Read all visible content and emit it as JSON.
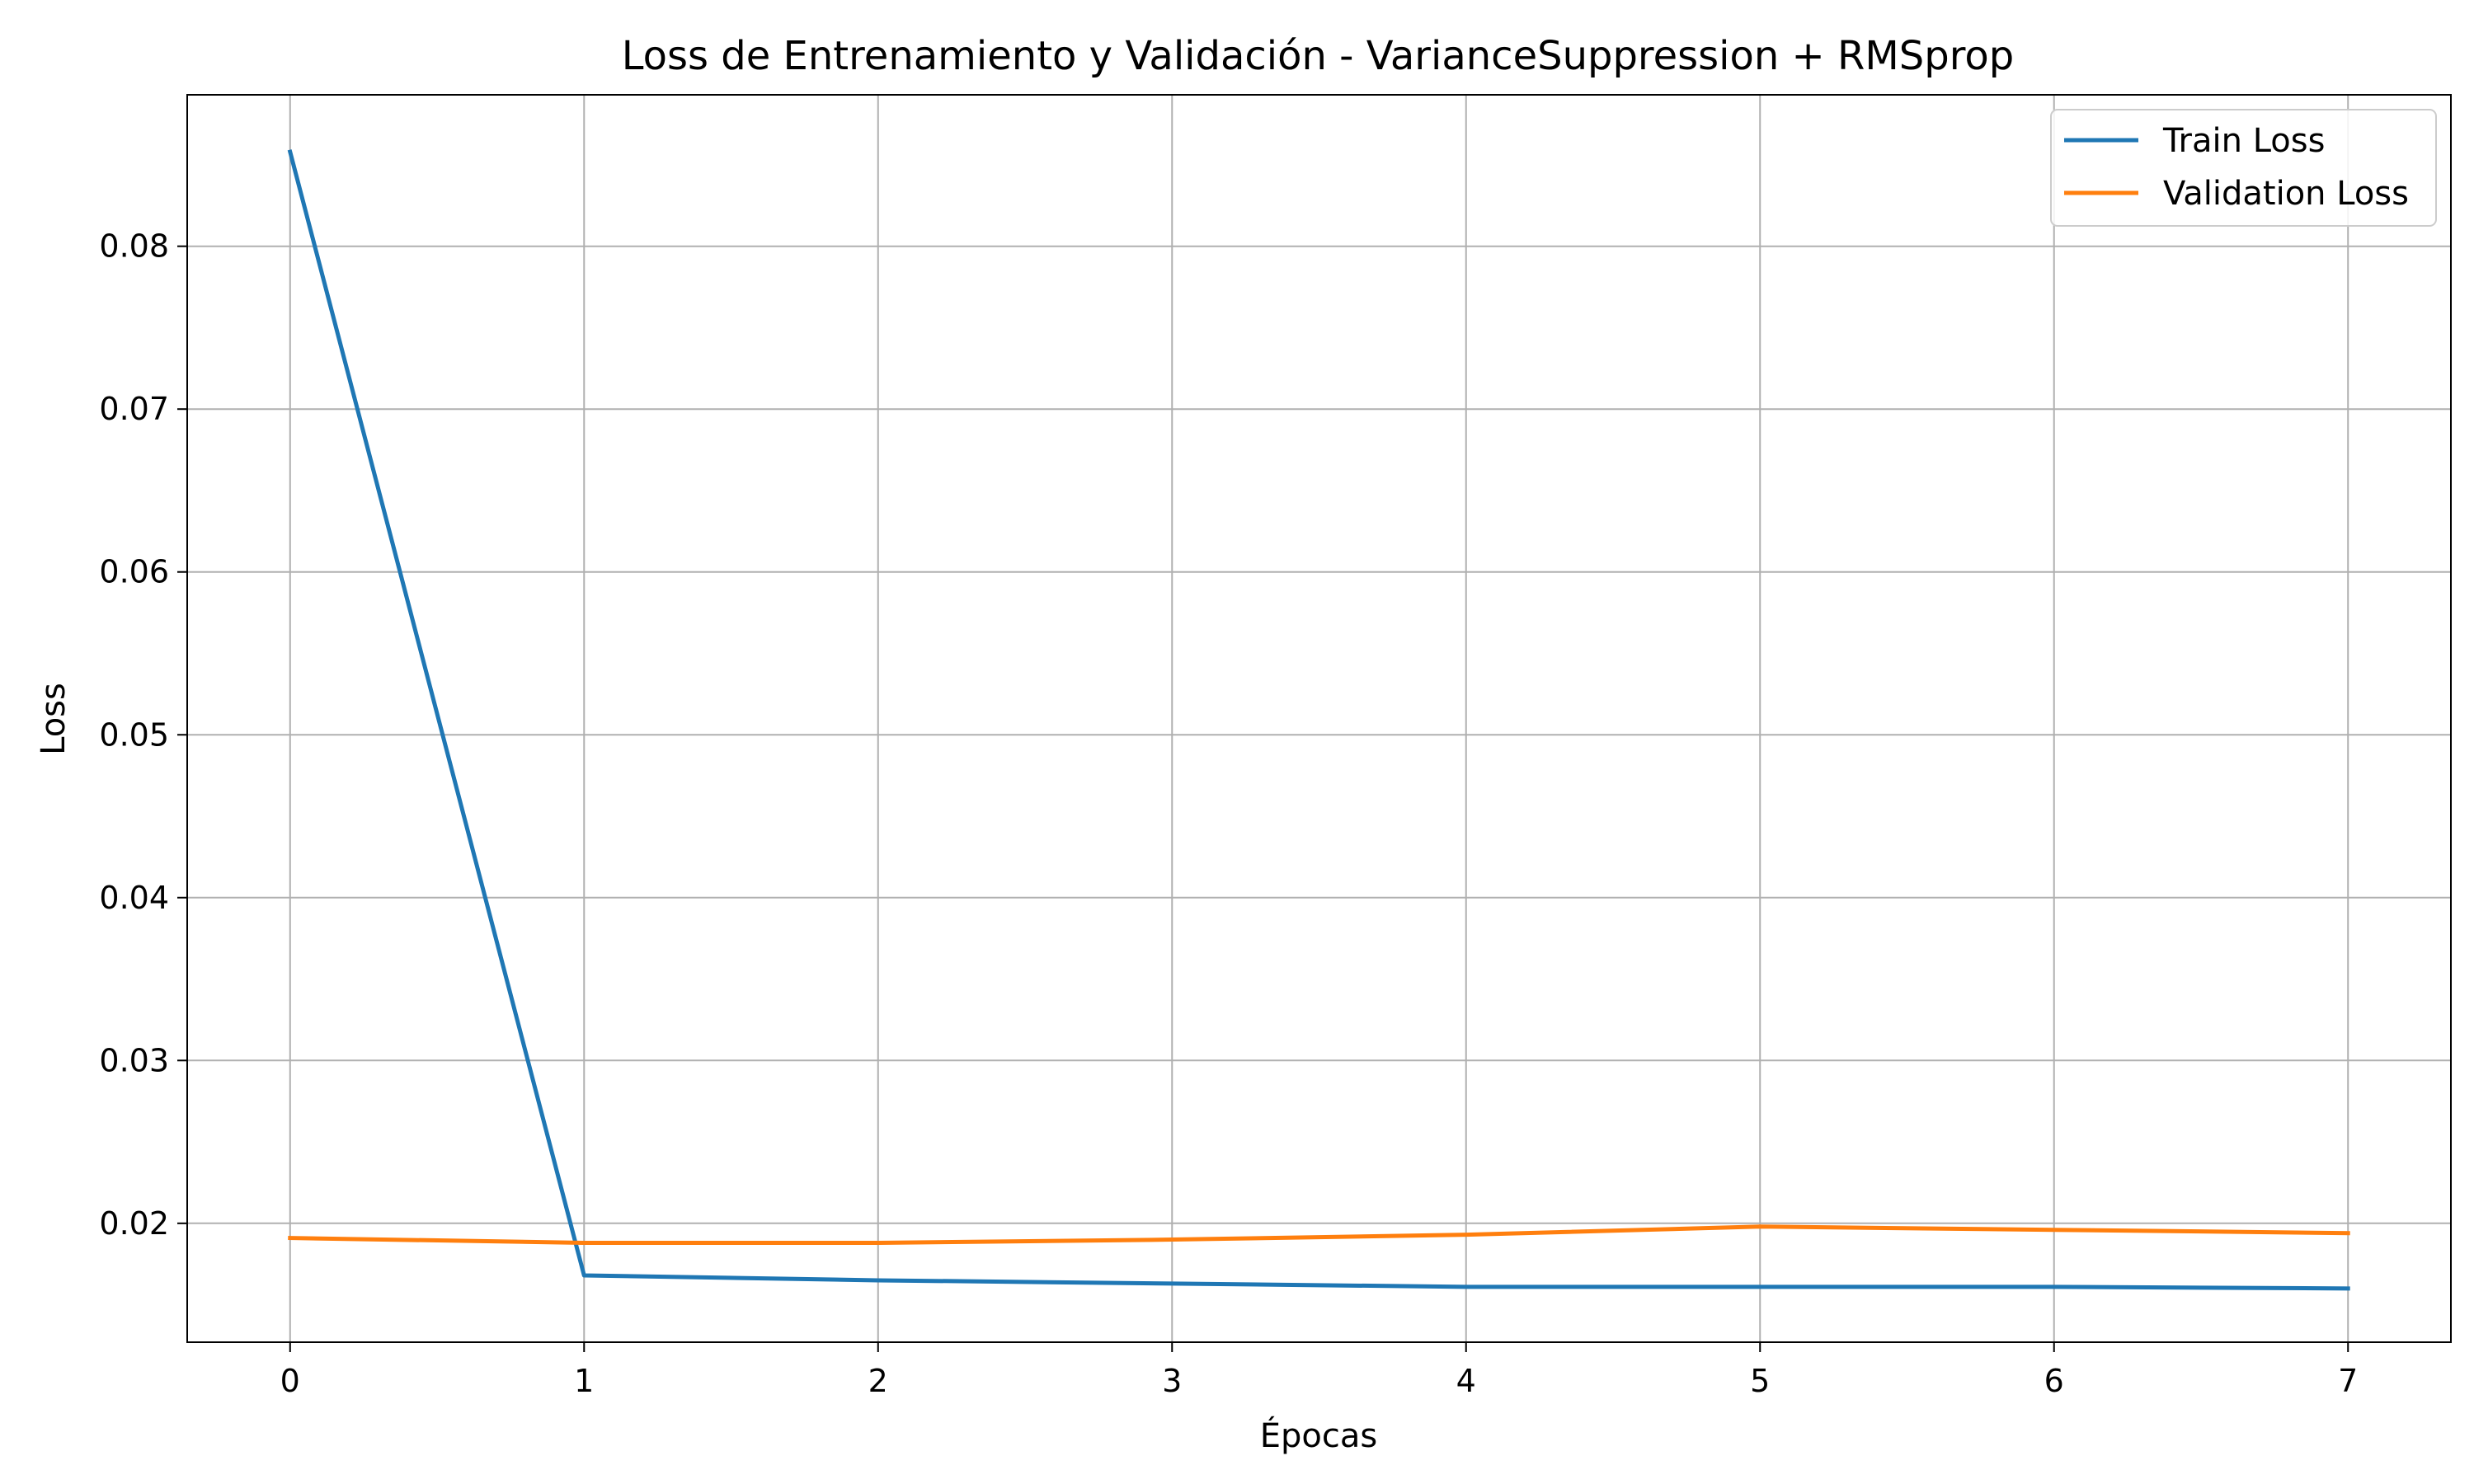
{
  "chart_data": {
    "type": "line",
    "title": "Loss de Entrenamiento y Validación - VarianceSuppression + RMSprop",
    "xlabel": "Épocas",
    "ylabel": "Loss",
    "x": [
      0,
      1,
      2,
      3,
      4,
      5,
      6,
      7
    ],
    "xticks": [
      "0",
      "1",
      "2",
      "3",
      "4",
      "5",
      "6",
      "7"
    ],
    "yticks": [
      "0.02",
      "0.03",
      "0.04",
      "0.05",
      "0.06",
      "0.07",
      "0.08"
    ],
    "xlim": [
      -0.35,
      7.35
    ],
    "ylim": [
      0.0127,
      0.0893
    ],
    "grid": true,
    "legend_position": "top-right",
    "series": [
      {
        "name": "Train Loss",
        "color": "#1f77b4",
        "values": [
          0.0858,
          0.0168,
          0.0165,
          0.0163,
          0.0161,
          0.0161,
          0.0161,
          0.016
        ]
      },
      {
        "name": "Validation Loss",
        "color": "#ff7f0e",
        "values": [
          0.0191,
          0.0188,
          0.0188,
          0.019,
          0.0193,
          0.0198,
          0.0196,
          0.0194
        ]
      }
    ]
  }
}
